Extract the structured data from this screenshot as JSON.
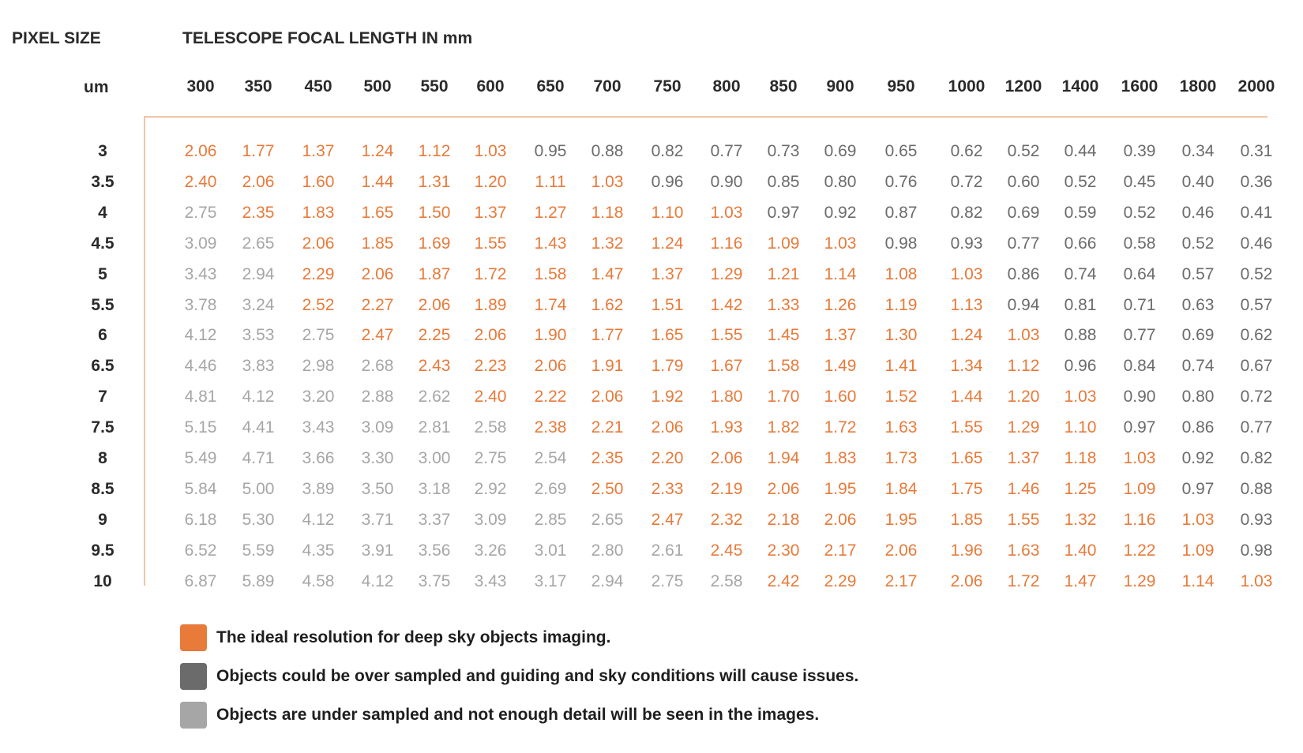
{
  "chart_data": {
    "type": "table",
    "row_header_title": "PIXEL SIZE",
    "row_header_unit": "um",
    "column_header_title": "TELESCOPE FOCAL LENGTH IN mm",
    "columns": [
      "300",
      "350",
      "450",
      "500",
      "550",
      "600",
      "650",
      "700",
      "750",
      "800",
      "850",
      "900",
      "950",
      "1000",
      "1200",
      "1400",
      "1600",
      "1800",
      "2000"
    ],
    "rows": [
      {
        "pixel_size": "3",
        "values": [
          "2.06",
          "1.77",
          "1.37",
          "1.24",
          "1.12",
          "1.03",
          "0.95",
          "0.88",
          "0.82",
          "0.77",
          "0.73",
          "0.69",
          "0.65",
          "0.62",
          "0.52",
          "0.44",
          "0.39",
          "0.34",
          "0.31"
        ],
        "classes": [
          "ideal",
          "ideal",
          "ideal",
          "ideal",
          "ideal",
          "ideal",
          "over",
          "over",
          "over",
          "over",
          "over",
          "over",
          "over",
          "over",
          "over",
          "over",
          "over",
          "over",
          "over"
        ]
      },
      {
        "pixel_size": "3.5",
        "values": [
          "2.40",
          "2.06",
          "1.60",
          "1.44",
          "1.31",
          "1.20",
          "1.11",
          "1.03",
          "0.96",
          "0.90",
          "0.85",
          "0.80",
          "0.76",
          "0.72",
          "0.60",
          "0.52",
          "0.45",
          "0.40",
          "0.36"
        ],
        "classes": [
          "ideal",
          "ideal",
          "ideal",
          "ideal",
          "ideal",
          "ideal",
          "ideal",
          "ideal",
          "over",
          "over",
          "over",
          "over",
          "over",
          "over",
          "over",
          "over",
          "over",
          "over",
          "over"
        ]
      },
      {
        "pixel_size": "4",
        "values": [
          "2.75",
          "2.35",
          "1.83",
          "1.65",
          "1.50",
          "1.37",
          "1.27",
          "1.18",
          "1.10",
          "1.03",
          "0.97",
          "0.92",
          "0.87",
          "0.82",
          "0.69",
          "0.59",
          "0.52",
          "0.46",
          "0.41"
        ],
        "classes": [
          "under",
          "ideal",
          "ideal",
          "ideal",
          "ideal",
          "ideal",
          "ideal",
          "ideal",
          "ideal",
          "ideal",
          "over",
          "over",
          "over",
          "over",
          "over",
          "over",
          "over",
          "over",
          "over"
        ]
      },
      {
        "pixel_size": "4.5",
        "values": [
          "3.09",
          "2.65",
          "2.06",
          "1.85",
          "1.69",
          "1.55",
          "1.43",
          "1.32",
          "1.24",
          "1.16",
          "1.09",
          "1.03",
          "0.98",
          "0.93",
          "0.77",
          "0.66",
          "0.58",
          "0.52",
          "0.46"
        ],
        "classes": [
          "under",
          "under",
          "ideal",
          "ideal",
          "ideal",
          "ideal",
          "ideal",
          "ideal",
          "ideal",
          "ideal",
          "ideal",
          "ideal",
          "over",
          "over",
          "over",
          "over",
          "over",
          "over",
          "over"
        ]
      },
      {
        "pixel_size": "5",
        "values": [
          "3.43",
          "2.94",
          "2.29",
          "2.06",
          "1.87",
          "1.72",
          "1.58",
          "1.47",
          "1.37",
          "1.29",
          "1.21",
          "1.14",
          "1.08",
          "1.03",
          "0.86",
          "0.74",
          "0.64",
          "0.57",
          "0.52"
        ],
        "classes": [
          "under",
          "under",
          "ideal",
          "ideal",
          "ideal",
          "ideal",
          "ideal",
          "ideal",
          "ideal",
          "ideal",
          "ideal",
          "ideal",
          "ideal",
          "ideal",
          "over",
          "over",
          "over",
          "over",
          "over"
        ]
      },
      {
        "pixel_size": "5.5",
        "values": [
          "3.78",
          "3.24",
          "2.52",
          "2.27",
          "2.06",
          "1.89",
          "1.74",
          "1.62",
          "1.51",
          "1.42",
          "1.33",
          "1.26",
          "1.19",
          "1.13",
          "0.94",
          "0.81",
          "0.71",
          "0.63",
          "0.57"
        ],
        "classes": [
          "under",
          "under",
          "ideal",
          "ideal",
          "ideal",
          "ideal",
          "ideal",
          "ideal",
          "ideal",
          "ideal",
          "ideal",
          "ideal",
          "ideal",
          "ideal",
          "over",
          "over",
          "over",
          "over",
          "over"
        ]
      },
      {
        "pixel_size": "6",
        "values": [
          "4.12",
          "3.53",
          "2.75",
          "2.47",
          "2.25",
          "2.06",
          "1.90",
          "1.77",
          "1.65",
          "1.55",
          "1.45",
          "1.37",
          "1.30",
          "1.24",
          "1.03",
          "0.88",
          "0.77",
          "0.69",
          "0.62"
        ],
        "classes": [
          "under",
          "under",
          "under",
          "ideal",
          "ideal",
          "ideal",
          "ideal",
          "ideal",
          "ideal",
          "ideal",
          "ideal",
          "ideal",
          "ideal",
          "ideal",
          "ideal",
          "over",
          "over",
          "over",
          "over"
        ]
      },
      {
        "pixel_size": "6.5",
        "values": [
          "4.46",
          "3.83",
          "2.98",
          "2.68",
          "2.43",
          "2.23",
          "2.06",
          "1.91",
          "1.79",
          "1.67",
          "1.58",
          "1.49",
          "1.41",
          "1.34",
          "1.12",
          "0.96",
          "0.84",
          "0.74",
          "0.67"
        ],
        "classes": [
          "under",
          "under",
          "under",
          "under",
          "ideal",
          "ideal",
          "ideal",
          "ideal",
          "ideal",
          "ideal",
          "ideal",
          "ideal",
          "ideal",
          "ideal",
          "ideal",
          "over",
          "over",
          "over",
          "over"
        ]
      },
      {
        "pixel_size": "7",
        "values": [
          "4.81",
          "4.12",
          "3.20",
          "2.88",
          "2.62",
          "2.40",
          "2.22",
          "2.06",
          "1.92",
          "1.80",
          "1.70",
          "1.60",
          "1.52",
          "1.44",
          "1.20",
          "1.03",
          "0.90",
          "0.80",
          "0.72"
        ],
        "classes": [
          "under",
          "under",
          "under",
          "under",
          "under",
          "ideal",
          "ideal",
          "ideal",
          "ideal",
          "ideal",
          "ideal",
          "ideal",
          "ideal",
          "ideal",
          "ideal",
          "ideal",
          "over",
          "over",
          "over"
        ]
      },
      {
        "pixel_size": "7.5",
        "values": [
          "5.15",
          "4.41",
          "3.43",
          "3.09",
          "2.81",
          "2.58",
          "2.38",
          "2.21",
          "2.06",
          "1.93",
          "1.82",
          "1.72",
          "1.63",
          "1.55",
          "1.29",
          "1.10",
          "0.97",
          "0.86",
          "0.77"
        ],
        "classes": [
          "under",
          "under",
          "under",
          "under",
          "under",
          "under",
          "ideal",
          "ideal",
          "ideal",
          "ideal",
          "ideal",
          "ideal",
          "ideal",
          "ideal",
          "ideal",
          "ideal",
          "over",
          "over",
          "over"
        ]
      },
      {
        "pixel_size": "8",
        "values": [
          "5.49",
          "4.71",
          "3.66",
          "3.30",
          "3.00",
          "2.75",
          "2.54",
          "2.35",
          "2.20",
          "2.06",
          "1.94",
          "1.83",
          "1.73",
          "1.65",
          "1.37",
          "1.18",
          "1.03",
          "0.92",
          "0.82"
        ],
        "classes": [
          "under",
          "under",
          "under",
          "under",
          "under",
          "under",
          "under",
          "ideal",
          "ideal",
          "ideal",
          "ideal",
          "ideal",
          "ideal",
          "ideal",
          "ideal",
          "ideal",
          "ideal",
          "over",
          "over"
        ]
      },
      {
        "pixel_size": "8.5",
        "values": [
          "5.84",
          "5.00",
          "3.89",
          "3.50",
          "3.18",
          "2.92",
          "2.69",
          "2.50",
          "2.33",
          "2.19",
          "2.06",
          "1.95",
          "1.84",
          "1.75",
          "1.46",
          "1.25",
          "1.09",
          "0.97",
          "0.88"
        ],
        "classes": [
          "under",
          "under",
          "under",
          "under",
          "under",
          "under",
          "under",
          "ideal",
          "ideal",
          "ideal",
          "ideal",
          "ideal",
          "ideal",
          "ideal",
          "ideal",
          "ideal",
          "ideal",
          "over",
          "over"
        ]
      },
      {
        "pixel_size": "9",
        "values": [
          "6.18",
          "5.30",
          "4.12",
          "3.71",
          "3.37",
          "3.09",
          "2.85",
          "2.65",
          "2.47",
          "2.32",
          "2.18",
          "2.06",
          "1.95",
          "1.85",
          "1.55",
          "1.32",
          "1.16",
          "1.03",
          "0.93"
        ],
        "classes": [
          "under",
          "under",
          "under",
          "under",
          "under",
          "under",
          "under",
          "under",
          "ideal",
          "ideal",
          "ideal",
          "ideal",
          "ideal",
          "ideal",
          "ideal",
          "ideal",
          "ideal",
          "ideal",
          "over"
        ]
      },
      {
        "pixel_size": "9.5",
        "values": [
          "6.52",
          "5.59",
          "4.35",
          "3.91",
          "3.56",
          "3.26",
          "3.01",
          "2.80",
          "2.61",
          "2.45",
          "2.30",
          "2.17",
          "2.06",
          "1.96",
          "1.63",
          "1.40",
          "1.22",
          "1.09",
          "0.98"
        ],
        "classes": [
          "under",
          "under",
          "under",
          "under",
          "under",
          "under",
          "under",
          "under",
          "under",
          "ideal",
          "ideal",
          "ideal",
          "ideal",
          "ideal",
          "ideal",
          "ideal",
          "ideal",
          "ideal",
          "over"
        ]
      },
      {
        "pixel_size": "10",
        "values": [
          "6.87",
          "5.89",
          "4.58",
          "4.12",
          "3.75",
          "3.43",
          "3.17",
          "2.94",
          "2.75",
          "2.58",
          "2.42",
          "2.29",
          "2.17",
          "2.06",
          "1.72",
          "1.47",
          "1.29",
          "1.14",
          "1.03"
        ],
        "classes": [
          "under",
          "under",
          "under",
          "under",
          "under",
          "under",
          "under",
          "under",
          "under",
          "under",
          "ideal",
          "ideal",
          "ideal",
          "ideal",
          "ideal",
          "ideal",
          "ideal",
          "ideal",
          "ideal"
        ]
      }
    ],
    "legend": [
      {
        "key": "ideal",
        "color": "#e87a3a",
        "label": "The ideal resolution for deep sky objects imaging."
      },
      {
        "key": "over",
        "color": "#6b6b6b",
        "label": "Objects could be over sampled and guiding and sky conditions will cause issues."
      },
      {
        "key": "under",
        "color": "#a6a6a6",
        "label": "Objects are under sampled and not enough detail will be seen in the images."
      }
    ]
  }
}
